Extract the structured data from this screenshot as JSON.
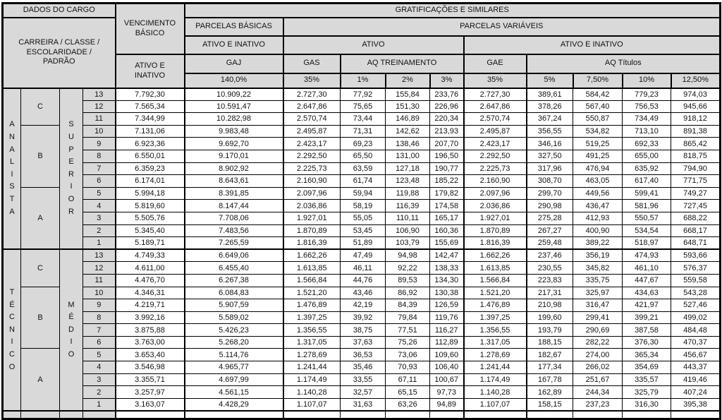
{
  "colors": {
    "cell_fill": "#d9d9d9",
    "border": "#000000",
    "background": "#ffffff",
    "text": "#111111"
  },
  "table": {
    "header": {
      "dados_do_cargo": "DADOS DO CARGO",
      "carreira_classe": "CARREIRA / CLASSE /\nESCOLARIDADE /\nPADRÃO",
      "vencimento_basico": "VENCIMENTO\nBÁSICO",
      "vencimento_sub": "ATIVO E\nINATIVO",
      "gratificacoes": "GRATIFICAÇÕES E SIMILARES",
      "parcelas_basicas": "PARCELAS BÁSICAS",
      "parcelas_basicas_sub": "ATIVO E INATIVO",
      "parcelas_variaveis": "PARCELAS VARIÁVEIS",
      "ativo": "ATIVO",
      "ativo_e_inativo": "ATIVO E INATIVO",
      "gaj": "GAJ",
      "gaj_pct": "140,0%",
      "gas": "GAS",
      "gas_pct": "35%",
      "aq_treinamento": "AQ TREINAMENTO",
      "aq_treinamento_pcts": [
        "1%",
        "2%",
        "3%"
      ],
      "gae": "GAE",
      "gae_pct": "35%",
      "aq_titulos": "AQ Títulos",
      "aq_titulos_pcts": [
        "5%",
        "7,50%",
        "10%",
        "12,50%"
      ]
    },
    "sections": [
      {
        "carreira": "ANALISTA",
        "carreira_vertical": "A\nN\nA\nL\nI\nS\nT\nA",
        "escolaridade": "SUPERIOR",
        "escolaridade_vertical": "S\nU\nP\nE\nR\nI\nO\nR",
        "classes": [
          {
            "label": "C",
            "span": 3
          },
          {
            "label": "B",
            "span": 5
          },
          {
            "label": "A",
            "span": 5
          }
        ],
        "rows": [
          {
            "padrao": "13",
            "values": [
              "7.792,30",
              "10.909,22",
              "2.727,30",
              "77,92",
              "155,84",
              "233,76",
              "2.727,30",
              "389,61",
              "584,42",
              "779,23",
              "974,03"
            ]
          },
          {
            "padrao": "12",
            "values": [
              "7.565,34",
              "10.591,47",
              "2.647,86",
              "75,65",
              "151,30",
              "226,96",
              "2.647,86",
              "378,26",
              "567,40",
              "756,53",
              "945,66"
            ]
          },
          {
            "padrao": "11",
            "values": [
              "7.344,99",
              "10.282,98",
              "2.570,74",
              "73,44",
              "146,89",
              "220,34",
              "2.570,74",
              "367,24",
              "550,87",
              "734,49",
              "918,12"
            ]
          },
          {
            "padrao": "10",
            "values": [
              "7.131,06",
              "9.983,48",
              "2.495,87",
              "71,31",
              "142,62",
              "213,93",
              "2.495,87",
              "356,55",
              "534,82",
              "713,10",
              "891,38"
            ]
          },
          {
            "padrao": "9",
            "values": [
              "6.923,36",
              "9.692,70",
              "2.423,17",
              "69,23",
              "138,46",
              "207,70",
              "2.423,17",
              "346,16",
              "519,25",
              "692,33",
              "865,42"
            ]
          },
          {
            "padrao": "8",
            "values": [
              "6.550,01",
              "9.170,01",
              "2.292,50",
              "65,50",
              "131,00",
              "196,50",
              "2.292,50",
              "327,50",
              "491,25",
              "655,00",
              "818,75"
            ]
          },
          {
            "padrao": "7",
            "values": [
              "6.359,23",
              "8.902,92",
              "2.225,73",
              "63,59",
              "127,18",
              "190,77",
              "2.225,73",
              "317,96",
              "476,94",
              "635,92",
              "794,90"
            ]
          },
          {
            "padrao": "6",
            "values": [
              "6.174,01",
              "8.643,61",
              "2.160,90",
              "61,74",
              "123,48",
              "185,22",
              "2.160,90",
              "308,70",
              "463,05",
              "617,40",
              "771,75"
            ]
          },
          {
            "padrao": "5",
            "values": [
              "5.994,18",
              "8.391,85",
              "2.097,96",
              "59,94",
              "119,88",
              "179,82",
              "2.097,96",
              "299,70",
              "449,56",
              "599,41",
              "749,27"
            ]
          },
          {
            "padrao": "4",
            "values": [
              "5.819,60",
              "8.147,44",
              "2.036,86",
              "58,19",
              "116,39",
              "174,58",
              "2.036,86",
              "290,98",
              "436,47",
              "581,96",
              "727,45"
            ]
          },
          {
            "padrao": "3",
            "values": [
              "5.505,76",
              "7.708,06",
              "1.927,01",
              "55,05",
              "110,11",
              "165,17",
              "1.927,01",
              "275,28",
              "412,93",
              "550,57",
              "688,22"
            ]
          },
          {
            "padrao": "2",
            "values": [
              "5.345,40",
              "7.483,56",
              "1.870,89",
              "53,45",
              "106,90",
              "160,36",
              "1.870,89",
              "267,27",
              "400,90",
              "534,54",
              "668,17"
            ]
          },
          {
            "padrao": "1",
            "values": [
              "5.189,71",
              "7.265,59",
              "1.816,39",
              "51,89",
              "103,79",
              "155,69",
              "1.816,39",
              "259,48",
              "389,22",
              "518,97",
              "648,71"
            ]
          }
        ]
      },
      {
        "carreira": "TÉCNICO",
        "carreira_vertical": "T\nÉ\nC\nN\nI\nC\nO",
        "escolaridade": "MÉDIO",
        "escolaridade_vertical": "M\nÉ\nD\nI\nO",
        "classes": [
          {
            "label": "C",
            "span": 3
          },
          {
            "label": "B",
            "span": 5
          },
          {
            "label": "A",
            "span": 5
          }
        ],
        "rows": [
          {
            "padrao": "13",
            "values": [
              "4.749,33",
              "6.649,06",
              "1.662,26",
              "47,49",
              "94,98",
              "142,47",
              "1.662,26",
              "237,46",
              "356,19",
              "474,93",
              "593,66"
            ]
          },
          {
            "padrao": "12",
            "values": [
              "4.611,00",
              "6.455,40",
              "1.613,85",
              "46,11",
              "92,22",
              "138,33",
              "1.613,85",
              "230,55",
              "345,82",
              "461,10",
              "576,37"
            ]
          },
          {
            "padrao": "11",
            "values": [
              "4.476,70",
              "6.267,38",
              "1.566,84",
              "44,76",
              "89,53",
              "134,30",
              "1.566,84",
              "223,83",
              "335,75",
              "447,67",
              "559,58"
            ]
          },
          {
            "padrao": "10",
            "values": [
              "4.346,31",
              "6.084,83",
              "1.521,20",
              "43,46",
              "86,92",
              "130,38",
              "1.521,20",
              "217,31",
              "325,97",
              "434,63",
              "543,28"
            ]
          },
          {
            "padrao": "9",
            "values": [
              "4.219,71",
              "5.907,59",
              "1.476,89",
              "42,19",
              "84,39",
              "126,59",
              "1.476,89",
              "210,98",
              "316,47",
              "421,97",
              "527,46"
            ]
          },
          {
            "padrao": "8",
            "values": [
              "3.992,16",
              "5.589,02",
              "1.397,25",
              "39,92",
              "79,84",
              "119,76",
              "1.397,25",
              "199,60",
              "299,41",
              "399,21",
              "499,02"
            ]
          },
          {
            "padrao": "7",
            "values": [
              "3.875,88",
              "5.426,23",
              "1.356,55",
              "38,75",
              "77,51",
              "116,27",
              "1.356,55",
              "193,79",
              "290,69",
              "387,58",
              "484,48"
            ]
          },
          {
            "padrao": "6",
            "values": [
              "3.763,00",
              "5.268,20",
              "1.317,05",
              "37,63",
              "75,26",
              "112,89",
              "1.317,05",
              "188,15",
              "282,22",
              "376,30",
              "470,37"
            ]
          },
          {
            "padrao": "5",
            "values": [
              "3.653,40",
              "5.114,76",
              "1.278,69",
              "36,53",
              "73,06",
              "109,60",
              "1.278,69",
              "182,67",
              "274,00",
              "365,34",
              "456,67"
            ]
          },
          {
            "padrao": "4",
            "values": [
              "3.546,98",
              "4.965,77",
              "1.241,44",
              "35,46",
              "70,93",
              "106,40",
              "1.241,44",
              "177,34",
              "266,02",
              "354,69",
              "443,37"
            ]
          },
          {
            "padrao": "3",
            "values": [
              "3.355,71",
              "4.697,99",
              "1.174,49",
              "33,55",
              "67,11",
              "100,67",
              "1.174,49",
              "167,78",
              "251,67",
              "335,57",
              "419,46"
            ]
          },
          {
            "padrao": "2",
            "values": [
              "3.257,97",
              "4.561,15",
              "1.140,28",
              "32,57",
              "65,15",
              "97,73",
              "1.140,28",
              "162,89",
              "244,34",
              "325,79",
              "407,24"
            ]
          },
          {
            "padrao": "1",
            "values": [
              "3.163,07",
              "4.428,29",
              "1.107,07",
              "31,63",
              "63,26",
              "94,89",
              "1.107,07",
              "158,15",
              "237,23",
              "316,30",
              "395,38"
            ]
          }
        ]
      }
    ]
  }
}
